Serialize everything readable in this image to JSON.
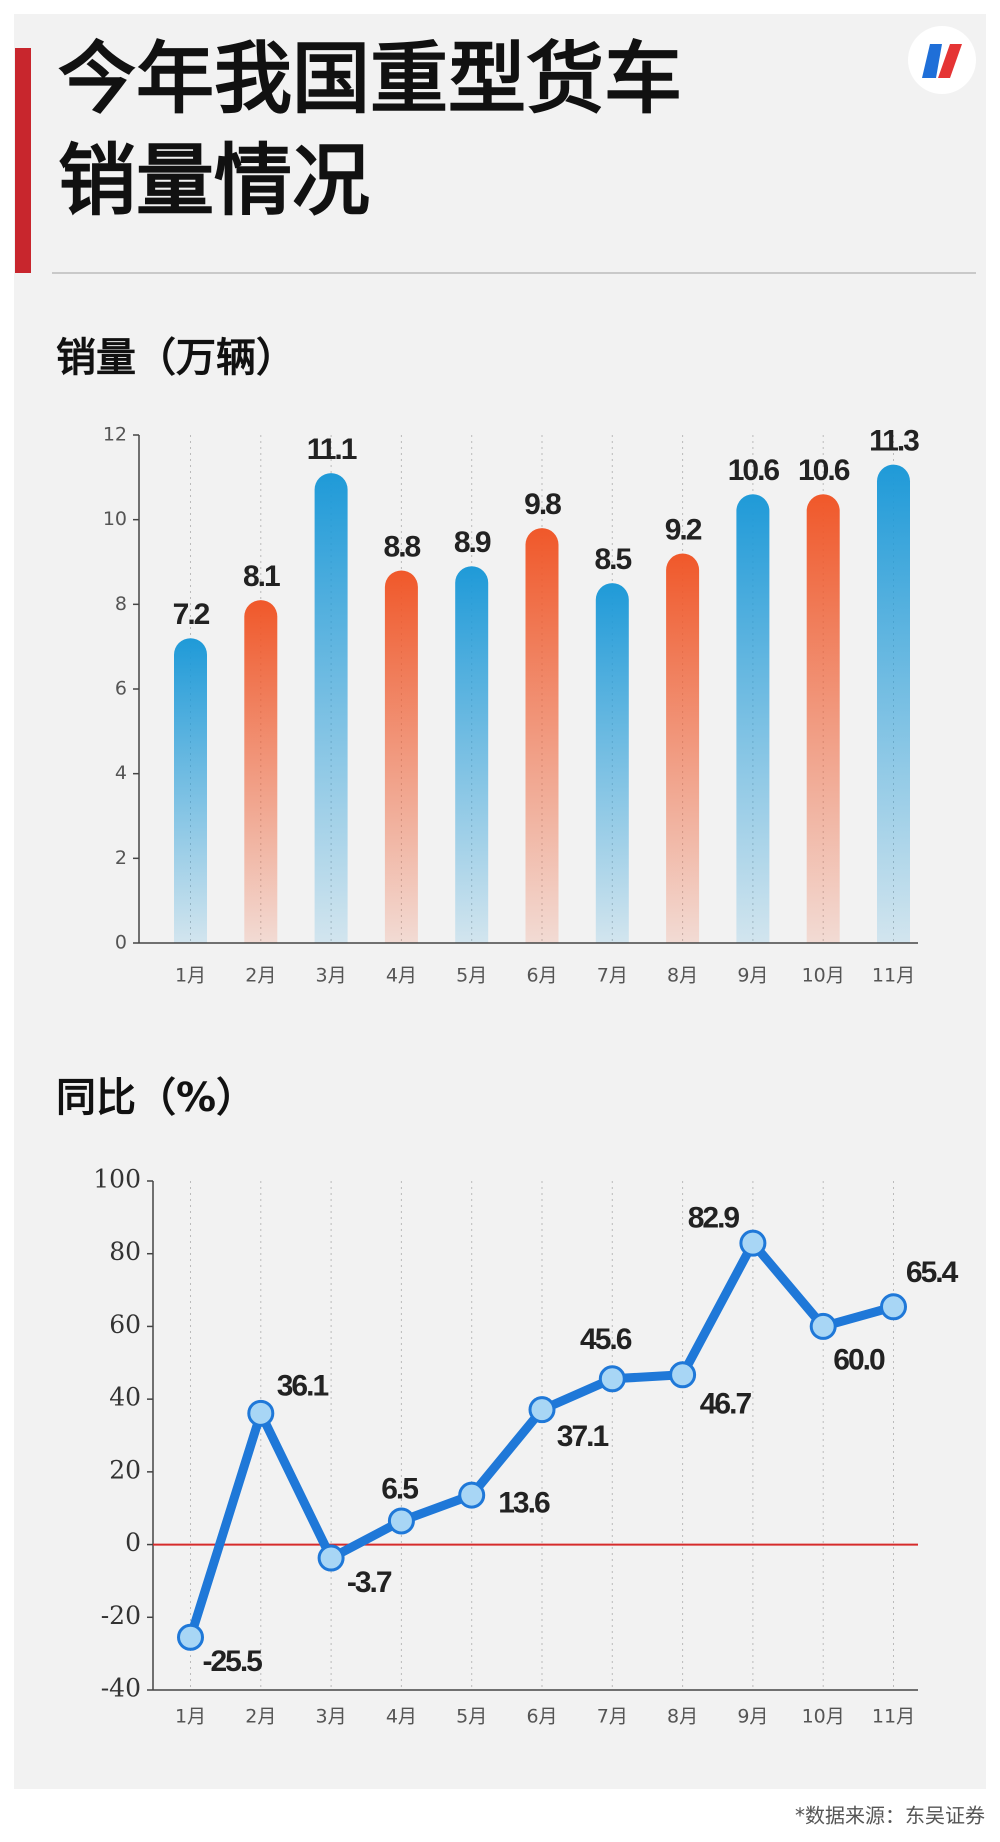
{
  "title": [
    "今年我国重型货车",
    "销量情况"
  ],
  "source": "*数据来源：东吴证券",
  "chart_data": [
    {
      "type": "bar",
      "title": "销量（万辆）",
      "categories": [
        "1月",
        "2月",
        "3月",
        "4月",
        "5月",
        "6月",
        "7月",
        "8月",
        "9月",
        "10月",
        "11月"
      ],
      "values": [
        7.2,
        8.1,
        11.1,
        8.8,
        8.9,
        9.8,
        8.5,
        9.2,
        10.6,
        10.6,
        11.3
      ],
      "colors": [
        "#1f9ad8",
        "#f0582a",
        "#1f9ad8",
        "#f0582a",
        "#1f9ad8",
        "#f0582a",
        "#1f9ad8",
        "#f0582a",
        "#1f9ad8",
        "#f0582a",
        "#1f9ad8"
      ],
      "ylim": [
        0,
        12
      ],
      "yticks": [
        0,
        2,
        4,
        6,
        8,
        10,
        12
      ],
      "grid": true
    },
    {
      "type": "line",
      "title": "同比（%）",
      "categories": [
        "1月",
        "2月",
        "3月",
        "4月",
        "5月",
        "6月",
        "7月",
        "8月",
        "9月",
        "10月",
        "11月"
      ],
      "values": [
        -25.5,
        36.1,
        -3.7,
        6.5,
        13.6,
        37.1,
        45.6,
        46.7,
        82.9,
        60.0,
        65.4
      ],
      "value_labels": [
        "-25.5",
        "36.1",
        "-3.7",
        "6.5",
        "13.6",
        "37.1",
        "45.6",
        "46.7",
        "82.9",
        "60.0",
        "65.4"
      ],
      "color": "#1f78d8",
      "zero_line_color": "#d62b2b",
      "ylim": [
        -40,
        100
      ],
      "yticks": [
        -40,
        -20,
        0,
        20,
        40,
        60,
        80,
        100
      ],
      "grid": true
    }
  ]
}
